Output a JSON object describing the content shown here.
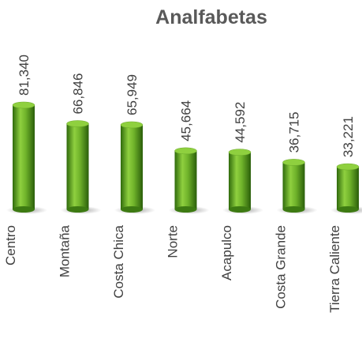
{
  "chart_data": {
    "type": "bar",
    "title": "Analfabetas",
    "categories": [
      "Centro",
      "Montaña",
      "Costa Chica",
      "Norte",
      "Acapulco",
      "Costa Grande",
      "Tierra Caliente"
    ],
    "values": [
      81340,
      66846,
      65949,
      45664,
      44592,
      36715,
      33221
    ],
    "value_labels": [
      "81,340",
      "66,846",
      "65,949",
      "45,664",
      "44,592",
      "36,715",
      "33,221"
    ],
    "color": "#5a9e1e"
  }
}
